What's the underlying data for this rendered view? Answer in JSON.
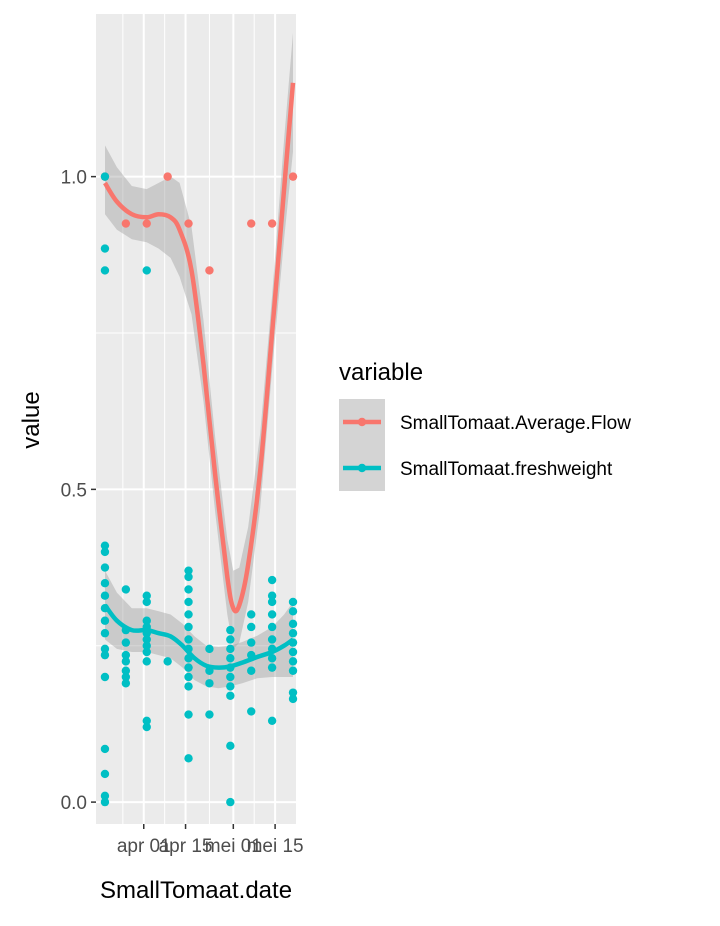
{
  "chart_data": {
    "type": "scatter",
    "xlabel": "SmallTomaat.date",
    "ylabel": "value",
    "x_tick_labels": [
      "apr 01",
      "apr 15",
      "mei 01",
      "mei 15"
    ],
    "x_tick_dates": [
      "2024-04-01",
      "2024-04-15",
      "2024-05-01",
      "2024-05-15"
    ],
    "xlim": [
      "2024-03-16",
      "2024-05-22"
    ],
    "y_ticks": [
      0.0,
      0.5,
      1.0
    ],
    "y_tick_labels": [
      "0.0",
      "0.5",
      "1.0"
    ],
    "ylim": [
      -0.035,
      1.26
    ],
    "grid": true,
    "legend": {
      "title": "variable",
      "position": "right"
    },
    "series": [
      {
        "name": "SmallTomaat.Average.Flow",
        "color": "#F8766D",
        "points": [
          {
            "x": "2024-03-19",
            "y": 1.0
          },
          {
            "x": "2024-03-26",
            "y": 0.925
          },
          {
            "x": "2024-04-02",
            "y": 0.925
          },
          {
            "x": "2024-04-09",
            "y": 1.0
          },
          {
            "x": "2024-04-16",
            "y": 0.925
          },
          {
            "x": "2024-04-23",
            "y": 0.85
          },
          {
            "x": "2024-05-07",
            "y": 0.925
          },
          {
            "x": "2024-05-14",
            "y": 0.925
          },
          {
            "x": "2024-05-21",
            "y": 1.0
          }
        ],
        "smooth": [
          {
            "x": "2024-03-19",
            "y": 0.99
          },
          {
            "x": "2024-03-23",
            "y": 0.96
          },
          {
            "x": "2024-03-28",
            "y": 0.94
          },
          {
            "x": "2024-04-02",
            "y": 0.935
          },
          {
            "x": "2024-04-06",
            "y": 0.94
          },
          {
            "x": "2024-04-10",
            "y": 0.935
          },
          {
            "x": "2024-04-13",
            "y": 0.915
          },
          {
            "x": "2024-04-17",
            "y": 0.85
          },
          {
            "x": "2024-04-21",
            "y": 0.7
          },
          {
            "x": "2024-04-25",
            "y": 0.52
          },
          {
            "x": "2024-04-29",
            "y": 0.36
          },
          {
            "x": "2024-05-01",
            "y": 0.31
          },
          {
            "x": "2024-05-03",
            "y": 0.315
          },
          {
            "x": "2024-05-06",
            "y": 0.38
          },
          {
            "x": "2024-05-10",
            "y": 0.53
          },
          {
            "x": "2024-05-14",
            "y": 0.75
          },
          {
            "x": "2024-05-18",
            "y": 0.98
          },
          {
            "x": "2024-05-21",
            "y": 1.15
          }
        ],
        "band": [
          {
            "x": "2024-03-19",
            "lo": 0.94,
            "hi": 1.05
          },
          {
            "x": "2024-03-23",
            "lo": 0.915,
            "hi": 1.015
          },
          {
            "x": "2024-03-28",
            "lo": 0.9,
            "hi": 0.985
          },
          {
            "x": "2024-04-02",
            "lo": 0.895,
            "hi": 0.98
          },
          {
            "x": "2024-04-06",
            "lo": 0.885,
            "hi": 0.99
          },
          {
            "x": "2024-04-10",
            "lo": 0.87,
            "hi": 1.0
          },
          {
            "x": "2024-04-13",
            "lo": 0.84,
            "hi": 0.99
          },
          {
            "x": "2024-04-17",
            "lo": 0.78,
            "hi": 0.92
          },
          {
            "x": "2024-04-21",
            "lo": 0.64,
            "hi": 0.77
          },
          {
            "x": "2024-04-25",
            "lo": 0.46,
            "hi": 0.58
          },
          {
            "x": "2024-04-29",
            "lo": 0.3,
            "hi": 0.42
          },
          {
            "x": "2024-05-01",
            "lo": 0.245,
            "hi": 0.37
          },
          {
            "x": "2024-05-03",
            "lo": 0.255,
            "hi": 0.375
          },
          {
            "x": "2024-05-06",
            "lo": 0.32,
            "hi": 0.44
          },
          {
            "x": "2024-05-10",
            "lo": 0.47,
            "hi": 0.59
          },
          {
            "x": "2024-05-14",
            "lo": 0.69,
            "hi": 0.81
          },
          {
            "x": "2024-05-18",
            "lo": 0.9,
            "hi": 1.06
          },
          {
            "x": "2024-05-21",
            "lo": 1.04,
            "hi": 1.23
          }
        ]
      },
      {
        "name": "SmallTomaat.freshweight",
        "color": "#00BFC4",
        "points": [
          {
            "x": "2024-03-19",
            "y": 1.0
          },
          {
            "x": "2024-03-19",
            "y": 0.885
          },
          {
            "x": "2024-03-19",
            "y": 0.85
          },
          {
            "x": "2024-03-19",
            "y": 0.41
          },
          {
            "x": "2024-03-19",
            "y": 0.4
          },
          {
            "x": "2024-03-19",
            "y": 0.375
          },
          {
            "x": "2024-03-19",
            "y": 0.35
          },
          {
            "x": "2024-03-19",
            "y": 0.33
          },
          {
            "x": "2024-03-19",
            "y": 0.31
          },
          {
            "x": "2024-03-19",
            "y": 0.29
          },
          {
            "x": "2024-03-19",
            "y": 0.27
          },
          {
            "x": "2024-03-19",
            "y": 0.245
          },
          {
            "x": "2024-03-19",
            "y": 0.235
          },
          {
            "x": "2024-03-19",
            "y": 0.2
          },
          {
            "x": "2024-03-19",
            "y": 0.085
          },
          {
            "x": "2024-03-19",
            "y": 0.045
          },
          {
            "x": "2024-03-19",
            "y": 0.01
          },
          {
            "x": "2024-03-19",
            "y": 0.0
          },
          {
            "x": "2024-03-26",
            "y": 0.34
          },
          {
            "x": "2024-03-26",
            "y": 0.275
          },
          {
            "x": "2024-03-26",
            "y": 0.255
          },
          {
            "x": "2024-03-26",
            "y": 0.235
          },
          {
            "x": "2024-03-26",
            "y": 0.225
          },
          {
            "x": "2024-03-26",
            "y": 0.21
          },
          {
            "x": "2024-03-26",
            "y": 0.2
          },
          {
            "x": "2024-03-26",
            "y": 0.19
          },
          {
            "x": "2024-04-02",
            "y": 0.85
          },
          {
            "x": "2024-04-02",
            "y": 0.33
          },
          {
            "x": "2024-04-02",
            "y": 0.32
          },
          {
            "x": "2024-04-02",
            "y": 0.29
          },
          {
            "x": "2024-04-02",
            "y": 0.28
          },
          {
            "x": "2024-04-02",
            "y": 0.27
          },
          {
            "x": "2024-04-02",
            "y": 0.26
          },
          {
            "x": "2024-04-02",
            "y": 0.25
          },
          {
            "x": "2024-04-02",
            "y": 0.24
          },
          {
            "x": "2024-04-02",
            "y": 0.225
          },
          {
            "x": "2024-04-02",
            "y": 0.13
          },
          {
            "x": "2024-04-02",
            "y": 0.12
          },
          {
            "x": "2024-04-09",
            "y": 0.225
          },
          {
            "x": "2024-04-16",
            "y": 0.37
          },
          {
            "x": "2024-04-16",
            "y": 0.36
          },
          {
            "x": "2024-04-16",
            "y": 0.34
          },
          {
            "x": "2024-04-16",
            "y": 0.32
          },
          {
            "x": "2024-04-16",
            "y": 0.3
          },
          {
            "x": "2024-04-16",
            "y": 0.28
          },
          {
            "x": "2024-04-16",
            "y": 0.26
          },
          {
            "x": "2024-04-16",
            "y": 0.245
          },
          {
            "x": "2024-04-16",
            "y": 0.23
          },
          {
            "x": "2024-04-16",
            "y": 0.215
          },
          {
            "x": "2024-04-16",
            "y": 0.2
          },
          {
            "x": "2024-04-16",
            "y": 0.185
          },
          {
            "x": "2024-04-16",
            "y": 0.14
          },
          {
            "x": "2024-04-16",
            "y": 0.07
          },
          {
            "x": "2024-04-23",
            "y": 0.245
          },
          {
            "x": "2024-04-23",
            "y": 0.21
          },
          {
            "x": "2024-04-23",
            "y": 0.19
          },
          {
            "x": "2024-04-23",
            "y": 0.14
          },
          {
            "x": "2024-04-30",
            "y": 0.275
          },
          {
            "x": "2024-04-30",
            "y": 0.26
          },
          {
            "x": "2024-04-30",
            "y": 0.245
          },
          {
            "x": "2024-04-30",
            "y": 0.23
          },
          {
            "x": "2024-04-30",
            "y": 0.215
          },
          {
            "x": "2024-04-30",
            "y": 0.2
          },
          {
            "x": "2024-04-30",
            "y": 0.185
          },
          {
            "x": "2024-04-30",
            "y": 0.17
          },
          {
            "x": "2024-04-30",
            "y": 0.09
          },
          {
            "x": "2024-04-30",
            "y": 0.0
          },
          {
            "x": "2024-05-07",
            "y": 0.3
          },
          {
            "x": "2024-05-07",
            "y": 0.28
          },
          {
            "x": "2024-05-07",
            "y": 0.255
          },
          {
            "x": "2024-05-07",
            "y": 0.235
          },
          {
            "x": "2024-05-07",
            "y": 0.21
          },
          {
            "x": "2024-05-07",
            "y": 0.145
          },
          {
            "x": "2024-05-14",
            "y": 0.355
          },
          {
            "x": "2024-05-14",
            "y": 0.33
          },
          {
            "x": "2024-05-14",
            "y": 0.32
          },
          {
            "x": "2024-05-14",
            "y": 0.3
          },
          {
            "x": "2024-05-14",
            "y": 0.28
          },
          {
            "x": "2024-05-14",
            "y": 0.26
          },
          {
            "x": "2024-05-14",
            "y": 0.245
          },
          {
            "x": "2024-05-14",
            "y": 0.23
          },
          {
            "x": "2024-05-14",
            "y": 0.215
          },
          {
            "x": "2024-05-14",
            "y": 0.13
          },
          {
            "x": "2024-05-21",
            "y": 0.32
          },
          {
            "x": "2024-05-21",
            "y": 0.305
          },
          {
            "x": "2024-05-21",
            "y": 0.285
          },
          {
            "x": "2024-05-21",
            "y": 0.27
          },
          {
            "x": "2024-05-21",
            "y": 0.255
          },
          {
            "x": "2024-05-21",
            "y": 0.24
          },
          {
            "x": "2024-05-21",
            "y": 0.225
          },
          {
            "x": "2024-05-21",
            "y": 0.21
          },
          {
            "x": "2024-05-21",
            "y": 0.175
          },
          {
            "x": "2024-05-21",
            "y": 0.165
          }
        ],
        "smooth": [
          {
            "x": "2024-03-19",
            "y": 0.315
          },
          {
            "x": "2024-03-23",
            "y": 0.29
          },
          {
            "x": "2024-03-28",
            "y": 0.275
          },
          {
            "x": "2024-04-02",
            "y": 0.275
          },
          {
            "x": "2024-04-06",
            "y": 0.27
          },
          {
            "x": "2024-04-10",
            "y": 0.265
          },
          {
            "x": "2024-04-14",
            "y": 0.25
          },
          {
            "x": "2024-04-18",
            "y": 0.23
          },
          {
            "x": "2024-04-22",
            "y": 0.218
          },
          {
            "x": "2024-04-26",
            "y": 0.215
          },
          {
            "x": "2024-04-30",
            "y": 0.217
          },
          {
            "x": "2024-05-04",
            "y": 0.223
          },
          {
            "x": "2024-05-09",
            "y": 0.232
          },
          {
            "x": "2024-05-14",
            "y": 0.24
          },
          {
            "x": "2024-05-18",
            "y": 0.25
          },
          {
            "x": "2024-05-21",
            "y": 0.26
          }
        ],
        "band": [
          {
            "x": "2024-03-19",
            "lo": 0.26,
            "hi": 0.37
          },
          {
            "x": "2024-03-23",
            "lo": 0.245,
            "hi": 0.335
          },
          {
            "x": "2024-03-28",
            "lo": 0.24,
            "hi": 0.31
          },
          {
            "x": "2024-04-02",
            "lo": 0.24,
            "hi": 0.31
          },
          {
            "x": "2024-04-06",
            "lo": 0.235,
            "hi": 0.305
          },
          {
            "x": "2024-04-10",
            "lo": 0.23,
            "hi": 0.3
          },
          {
            "x": "2024-04-14",
            "lo": 0.215,
            "hi": 0.285
          },
          {
            "x": "2024-04-18",
            "lo": 0.195,
            "hi": 0.265
          },
          {
            "x": "2024-04-22",
            "lo": 0.185,
            "hi": 0.25
          },
          {
            "x": "2024-04-26",
            "lo": 0.182,
            "hi": 0.248
          },
          {
            "x": "2024-04-30",
            "lo": 0.185,
            "hi": 0.25
          },
          {
            "x": "2024-05-04",
            "lo": 0.19,
            "hi": 0.256
          },
          {
            "x": "2024-05-09",
            "lo": 0.198,
            "hi": 0.266
          },
          {
            "x": "2024-05-14",
            "lo": 0.2,
            "hi": 0.28
          },
          {
            "x": "2024-05-18",
            "lo": 0.2,
            "hi": 0.3
          },
          {
            "x": "2024-05-21",
            "lo": 0.2,
            "hi": 0.32
          }
        ]
      }
    ]
  }
}
